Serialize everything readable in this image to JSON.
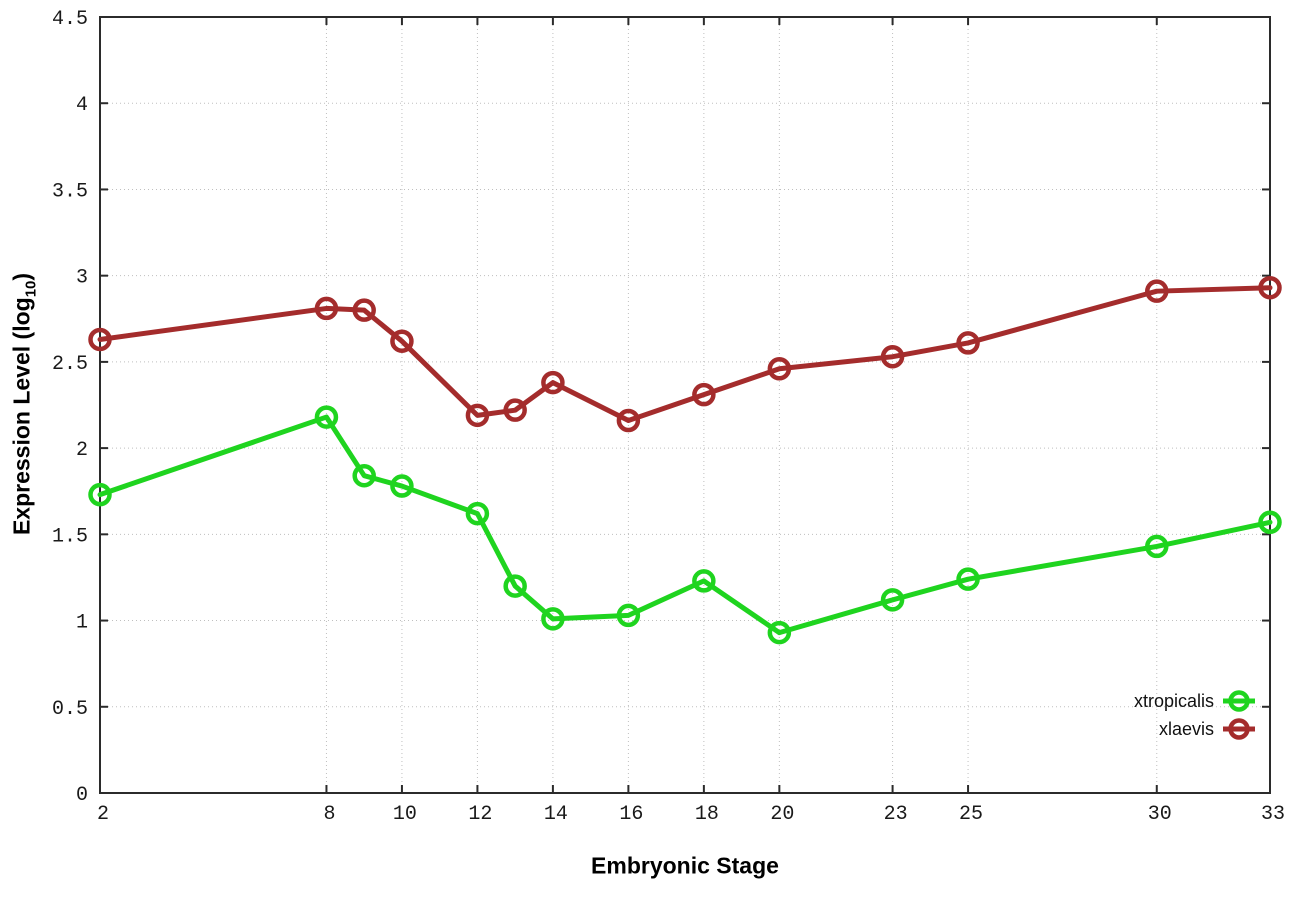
{
  "chart_data": {
    "type": "line",
    "title": "",
    "xlabel": "Embryonic Stage",
    "ylabel": "Expression Level (log10)",
    "ylabel_main": "Expression Level (log",
    "ylabel_sub": "10",
    "ylabel_close": ")",
    "x": [
      2,
      8,
      9,
      10,
      12,
      13,
      14,
      16,
      18,
      20,
      23,
      25,
      30,
      33
    ],
    "series": [
      {
        "name": "xtropicalis",
        "color": "#1fd41f",
        "values": [
          1.73,
          2.18,
          1.84,
          1.78,
          1.62,
          1.2,
          1.01,
          1.03,
          1.23,
          0.93,
          1.12,
          1.24,
          1.43,
          1.57
        ]
      },
      {
        "name": "xlaevis",
        "color": "#a42c2c",
        "values": [
          2.63,
          2.81,
          2.8,
          2.62,
          2.19,
          2.22,
          2.38,
          2.16,
          2.31,
          2.46,
          2.53,
          2.61,
          2.91,
          2.93
        ]
      }
    ],
    "xticks": [
      2,
      8,
      10,
      12,
      14,
      16,
      18,
      20,
      23,
      25,
      30,
      33
    ],
    "yticks": [
      0,
      0.5,
      1,
      1.5,
      2,
      2.5,
      3,
      3.5,
      4,
      4.5
    ],
    "xlim": [
      2,
      33
    ],
    "ylim": [
      0,
      4.5
    ],
    "grid": true,
    "legend_position": "bottom-right",
    "colors": {
      "background": "#ffffff",
      "axis": "#2b2b2b",
      "grid": "#bfbfbf",
      "tick_text": "#1a1a1a"
    }
  }
}
